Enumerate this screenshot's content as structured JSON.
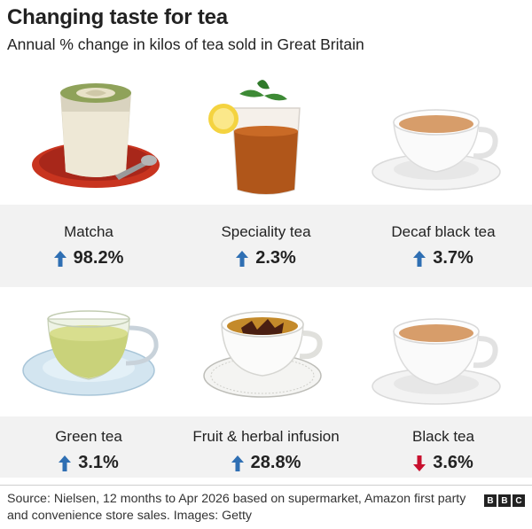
{
  "header": {
    "title": "Changing taste for tea",
    "subtitle": "Annual % change in kilos of tea sold in Great Britain"
  },
  "items": [
    {
      "label": "Matcha",
      "change": "98.2%",
      "direction": "up",
      "icon": "matcha-latte-icon"
    },
    {
      "label": "Speciality tea",
      "change": "2.3%",
      "direction": "up",
      "icon": "iced-tea-glass-icon"
    },
    {
      "label": "Decaf black tea",
      "change": "3.7%",
      "direction": "up",
      "icon": "tea-cup-with-milk-icon"
    },
    {
      "label": "Green tea",
      "change": "3.1%",
      "direction": "up",
      "icon": "glass-tea-cup-icon"
    },
    {
      "label": "Fruit & herbal infusion",
      "change": "28.8%",
      "direction": "up",
      "icon": "herbal-tea-cup-icon"
    },
    {
      "label": "Black tea",
      "change": "3.6%",
      "direction": "down",
      "icon": "tea-cup-with-milk-icon"
    }
  ],
  "colors": {
    "up": "#2f6fb3",
    "down": "#c8102e",
    "panel": "#f2f2f2"
  },
  "footer": {
    "source": "Source: Nielsen, 12 months to Apr 2026 based on supermarket, Amazon first party and convenience store sales. Images: Getty",
    "logo": [
      "B",
      "B",
      "C"
    ]
  }
}
